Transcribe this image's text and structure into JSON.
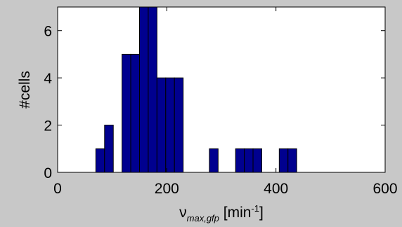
{
  "chart_data": {
    "type": "bar",
    "bins": [
      {
        "x0": 70,
        "x1": 86,
        "count": 1
      },
      {
        "x0": 86,
        "x1": 102,
        "count": 2
      },
      {
        "x0": 102,
        "x1": 118,
        "count": 0
      },
      {
        "x0": 118,
        "x1": 134,
        "count": 5
      },
      {
        "x0": 134,
        "x1": 150,
        "count": 5
      },
      {
        "x0": 150,
        "x1": 166,
        "count": 7
      },
      {
        "x0": 166,
        "x1": 182,
        "count": 7
      },
      {
        "x0": 182,
        "x1": 198,
        "count": 4
      },
      {
        "x0": 198,
        "x1": 214,
        "count": 4
      },
      {
        "x0": 214,
        "x1": 230,
        "count": 4
      },
      {
        "x0": 230,
        "x1": 246,
        "count": 0
      },
      {
        "x0": 246,
        "x1": 262,
        "count": 0
      },
      {
        "x0": 262,
        "x1": 278,
        "count": 0
      },
      {
        "x0": 278,
        "x1": 294,
        "count": 1
      },
      {
        "x0": 294,
        "x1": 310,
        "count": 0
      },
      {
        "x0": 310,
        "x1": 326,
        "count": 0
      },
      {
        "x0": 326,
        "x1": 342,
        "count": 1
      },
      {
        "x0": 342,
        "x1": 358,
        "count": 1
      },
      {
        "x0": 358,
        "x1": 374,
        "count": 1
      },
      {
        "x0": 374,
        "x1": 390,
        "count": 0
      },
      {
        "x0": 390,
        "x1": 406,
        "count": 0
      },
      {
        "x0": 406,
        "x1": 422,
        "count": 1
      },
      {
        "x0": 422,
        "x1": 438,
        "count": 1
      }
    ],
    "xlim": [
      0,
      600
    ],
    "ylim": [
      0,
      7
    ],
    "xticks": [
      0,
      200,
      400,
      600
    ],
    "yticks": [
      0,
      2,
      4,
      6
    ],
    "xlabel": {
      "main": "ν",
      "sub": "max,gfp",
      "unit_pre": " [min",
      "unit_sup": "-1",
      "unit_post": "]"
    },
    "ylabel": "#cells",
    "grid": false,
    "bar_color": "#00008f",
    "bar_edge_color": "#000000",
    "plot_background": "#ffffff"
  }
}
